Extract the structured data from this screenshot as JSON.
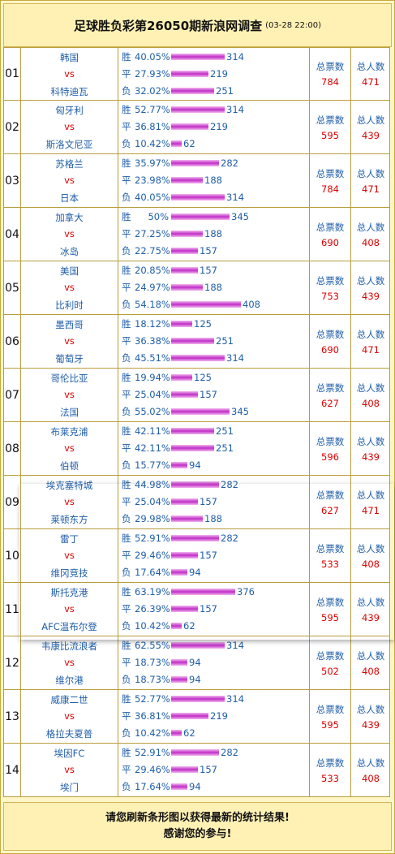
{
  "header": {
    "title": "足球胜负彩第26050期新浪网调查",
    "time": "(03-28 22:00)"
  },
  "labels": {
    "win": "胜",
    "draw": "平",
    "lose": "负",
    "vs": "vs",
    "total_votes": "总票数",
    "total_people": "总人数"
  },
  "bar_color": "#C02FC6",
  "matches": [
    {
      "no": "01",
      "home": "韩国",
      "away": "科特迪瓦",
      "win_pct": "40.05%",
      "win_n": "314",
      "draw_pct": "27.93%",
      "draw_n": "219",
      "lose_pct": "32.02%",
      "lose_n": "251",
      "votes": "784",
      "people": "471"
    },
    {
      "no": "02",
      "home": "匈牙利",
      "away": "斯洛文尼亚",
      "win_pct": "52.77%",
      "win_n": "314",
      "draw_pct": "36.81%",
      "draw_n": "219",
      "lose_pct": "10.42%",
      "lose_n": "62",
      "votes": "595",
      "people": "439"
    },
    {
      "no": "03",
      "home": "苏格兰",
      "away": "日本",
      "win_pct": "35.97%",
      "win_n": "282",
      "draw_pct": "23.98%",
      "draw_n": "188",
      "lose_pct": "40.05%",
      "lose_n": "314",
      "votes": "784",
      "people": "471"
    },
    {
      "no": "04",
      "home": "加拿大",
      "away": "冰岛",
      "win_pct": "50%",
      "win_n": "345",
      "draw_pct": "27.25%",
      "draw_n": "188",
      "lose_pct": "22.75%",
      "lose_n": "157",
      "votes": "690",
      "people": "408"
    },
    {
      "no": "05",
      "home": "美国",
      "away": "比利时",
      "win_pct": "20.85%",
      "win_n": "157",
      "draw_pct": "24.97%",
      "draw_n": "188",
      "lose_pct": "54.18%",
      "lose_n": "408",
      "votes": "753",
      "people": "439"
    },
    {
      "no": "06",
      "home": "墨西哥",
      "away": "葡萄牙",
      "win_pct": "18.12%",
      "win_n": "125",
      "draw_pct": "36.38%",
      "draw_n": "251",
      "lose_pct": "45.51%",
      "lose_n": "314",
      "votes": "690",
      "people": "471"
    },
    {
      "no": "07",
      "home": "哥伦比亚",
      "away": "法国",
      "win_pct": "19.94%",
      "win_n": "125",
      "draw_pct": "25.04%",
      "draw_n": "157",
      "lose_pct": "55.02%",
      "lose_n": "345",
      "votes": "627",
      "people": "408"
    },
    {
      "no": "08",
      "home": "布莱克浦",
      "away": "伯顿",
      "win_pct": "42.11%",
      "win_n": "251",
      "draw_pct": "42.11%",
      "draw_n": "251",
      "lose_pct": "15.77%",
      "lose_n": "94",
      "votes": "596",
      "people": "439"
    },
    {
      "no": "09",
      "home": "埃克塞特城",
      "away": "莱顿东方",
      "win_pct": "44.98%",
      "win_n": "282",
      "draw_pct": "25.04%",
      "draw_n": "157",
      "lose_pct": "29.98%",
      "lose_n": "188",
      "votes": "627",
      "people": "471"
    },
    {
      "no": "10",
      "home": "雷丁",
      "away": "维冈竞技",
      "win_pct": "52.91%",
      "win_n": "282",
      "draw_pct": "29.46%",
      "draw_n": "157",
      "lose_pct": "17.64%",
      "lose_n": "94",
      "votes": "533",
      "people": "408"
    },
    {
      "no": "11",
      "home": "斯托克港",
      "away": "AFC温布尔登",
      "win_pct": "63.19%",
      "win_n": "376",
      "draw_pct": "26.39%",
      "draw_n": "157",
      "lose_pct": "10.42%",
      "lose_n": "62",
      "votes": "595",
      "people": "439"
    },
    {
      "no": "12",
      "home": "韦康比流浪者",
      "away": "维尔港",
      "win_pct": "62.55%",
      "win_n": "314",
      "draw_pct": "18.73%",
      "draw_n": "94",
      "lose_pct": "18.73%",
      "lose_n": "94",
      "votes": "502",
      "people": "408"
    },
    {
      "no": "13",
      "home": "威康二世",
      "away": "格拉夫夏普",
      "win_pct": "52.77%",
      "win_n": "314",
      "draw_pct": "36.81%",
      "draw_n": "219",
      "lose_pct": "10.42%",
      "lose_n": "62",
      "votes": "595",
      "people": "439"
    },
    {
      "no": "14",
      "home": "埃因FC",
      "away": "埃门",
      "win_pct": "52.91%",
      "win_n": "282",
      "draw_pct": "29.46%",
      "draw_n": "157",
      "lose_pct": "17.64%",
      "lose_n": "94",
      "votes": "533",
      "people": "408"
    }
  ],
  "footer": {
    "line1": "请您刷新条形图以获得最新的统计结果!",
    "line2": "感谢您的参与!"
  }
}
